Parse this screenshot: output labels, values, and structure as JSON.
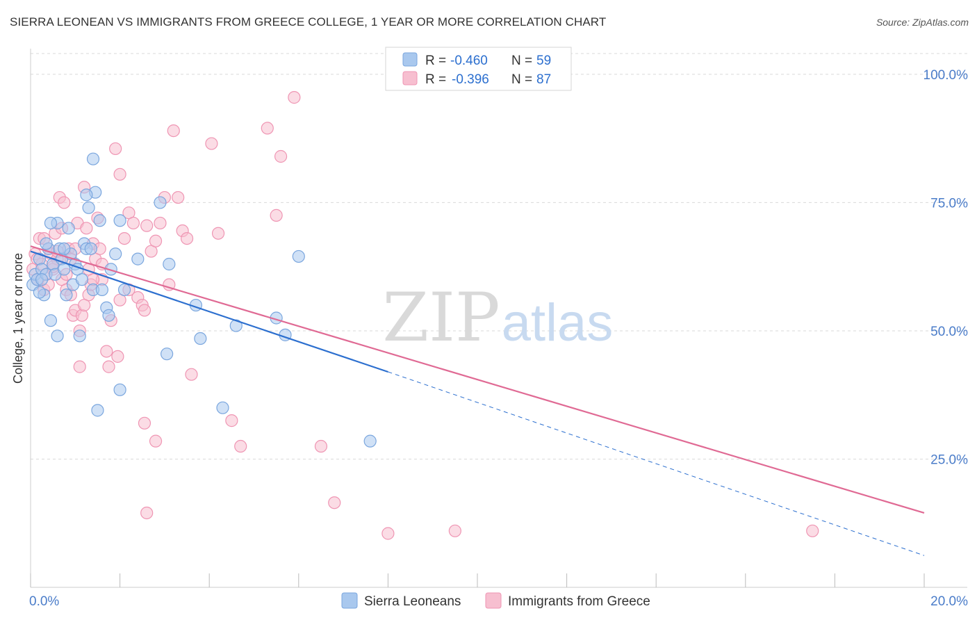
{
  "header": {
    "title": "SIERRA LEONEAN VS IMMIGRANTS FROM GREECE COLLEGE, 1 YEAR OR MORE CORRELATION CHART",
    "source": "Source: ZipAtlas.com"
  },
  "watermark": {
    "zip": "ZIP",
    "atlas": "atlas"
  },
  "colors": {
    "blue_fill": "#a9c8ee",
    "blue_stroke": "#7aa6de",
    "blue_line": "#2c6fcf",
    "pink_fill": "#f7bfd0",
    "pink_stroke": "#ef95b3",
    "pink_line": "#e06a94",
    "tick_label": "#4a7cc9",
    "grid": "#d9d9d9"
  },
  "chart_data": {
    "type": "scatter",
    "title": "SIERRA LEONEAN VS IMMIGRANTS FROM GREECE COLLEGE, 1 YEAR OR MORE CORRELATION CHART",
    "xlabel": "",
    "ylabel": "College, 1 year or more",
    "xlim": [
      0,
      20
    ],
    "ylim": [
      0,
      105
    ],
    "x_ticks": [
      0,
      2,
      4,
      6,
      8,
      10,
      12,
      14,
      16,
      18,
      20
    ],
    "x_tick_labels": [
      {
        "value": 0,
        "label": "0.0%"
      },
      {
        "value": 20,
        "label": "20.0%"
      }
    ],
    "y_tick_labels": [
      {
        "value": 25,
        "label": "25.0%"
      },
      {
        "value": 50,
        "label": "50.0%"
      },
      {
        "value": 75,
        "label": "75.0%"
      },
      {
        "value": 100,
        "label": "100.0%"
      }
    ],
    "grid": true,
    "legend_position": "top-center",
    "stats": [
      {
        "r_label": "R =",
        "r_value": "-0.460",
        "n_label": "N =",
        "n_value": "59"
      },
      {
        "r_label": "R =",
        "r_value": "-0.396",
        "n_label": "N =",
        "n_value": "87"
      }
    ],
    "series": [
      {
        "name": "Sierra Leoneans",
        "color": "#a9c8ee",
        "trend": {
          "x0": 0,
          "y0": 65.5,
          "x1": 8.0,
          "y1": 42.0,
          "dash_to_x": 20,
          "dash_to_y": 6.2
        },
        "points": [
          [
            0.05,
            59
          ],
          [
            0.1,
            61
          ],
          [
            0.15,
            60
          ],
          [
            0.2,
            64
          ],
          [
            0.25,
            62
          ],
          [
            0.3,
            57
          ],
          [
            0.35,
            61
          ],
          [
            0.4,
            66
          ],
          [
            0.45,
            52
          ],
          [
            0.5,
            63
          ],
          [
            0.55,
            61
          ],
          [
            0.6,
            71
          ],
          [
            0.65,
            66
          ],
          [
            0.7,
            64
          ],
          [
            0.75,
            62
          ],
          [
            0.8,
            57
          ],
          [
            0.85,
            70
          ],
          [
            0.9,
            65
          ],
          [
            0.95,
            59
          ],
          [
            1.0,
            63
          ],
          [
            1.05,
            62
          ],
          [
            1.1,
            49
          ],
          [
            1.15,
            60
          ],
          [
            1.2,
            67
          ],
          [
            1.25,
            66
          ],
          [
            1.3,
            74
          ],
          [
            1.35,
            66
          ],
          [
            1.4,
            58
          ],
          [
            1.45,
            77
          ],
          [
            1.5,
            34.5
          ],
          [
            1.55,
            71.5
          ],
          [
            1.6,
            58
          ],
          [
            1.7,
            54.5
          ],
          [
            1.75,
            53
          ],
          [
            1.8,
            62
          ],
          [
            1.9,
            65
          ],
          [
            2.0,
            71.5
          ],
          [
            2.1,
            58
          ],
          [
            2.4,
            64
          ],
          [
            2.9,
            75
          ],
          [
            3.05,
            45.5
          ],
          [
            3.1,
            63
          ],
          [
            3.7,
            55
          ],
          [
            3.8,
            48.5
          ],
          [
            4.3,
            35
          ],
          [
            4.6,
            51
          ],
          [
            5.5,
            52.5
          ],
          [
            5.7,
            49.2
          ],
          [
            6.0,
            64.5
          ],
          [
            7.6,
            28.5
          ],
          [
            1.4,
            83.5
          ],
          [
            1.25,
            76.5
          ],
          [
            0.45,
            71
          ],
          [
            0.75,
            66
          ],
          [
            0.25,
            60
          ],
          [
            0.35,
            67
          ],
          [
            0.6,
            49
          ],
          [
            2.0,
            38.5
          ],
          [
            0.2,
            57.5
          ]
        ]
      },
      {
        "name": "Immigrants from Greece",
        "color": "#f7bfd0",
        "trend": {
          "x0": 0,
          "y0": 66.5,
          "x1": 20,
          "y1": 14.5
        },
        "points": [
          [
            0.05,
            62
          ],
          [
            0.1,
            65
          ],
          [
            0.15,
            60
          ],
          [
            0.2,
            68
          ],
          [
            0.25,
            63
          ],
          [
            0.3,
            58
          ],
          [
            0.35,
            61
          ],
          [
            0.4,
            66
          ],
          [
            0.45,
            65
          ],
          [
            0.5,
            62
          ],
          [
            0.55,
            69
          ],
          [
            0.6,
            64
          ],
          [
            0.65,
            76
          ],
          [
            0.7,
            60
          ],
          [
            0.75,
            75
          ],
          [
            0.8,
            58
          ],
          [
            0.85,
            66
          ],
          [
            0.9,
            64
          ],
          [
            0.95,
            53
          ],
          [
            1.0,
            54
          ],
          [
            1.05,
            71
          ],
          [
            1.1,
            43
          ],
          [
            1.15,
            53
          ],
          [
            1.2,
            78
          ],
          [
            1.25,
            70
          ],
          [
            1.3,
            57
          ],
          [
            1.35,
            59
          ],
          [
            1.4,
            67
          ],
          [
            1.45,
            64
          ],
          [
            1.5,
            72
          ],
          [
            1.55,
            66
          ],
          [
            1.6,
            60
          ],
          [
            1.7,
            46
          ],
          [
            1.75,
            43
          ],
          [
            1.8,
            52
          ],
          [
            1.9,
            85.5
          ],
          [
            1.95,
            45
          ],
          [
            2.0,
            80.5
          ],
          [
            2.1,
            68
          ],
          [
            2.2,
            73
          ],
          [
            2.3,
            71
          ],
          [
            2.4,
            56.5
          ],
          [
            2.5,
            55
          ],
          [
            2.55,
            54
          ],
          [
            2.6,
            70.5
          ],
          [
            2.7,
            65.5
          ],
          [
            2.8,
            67.5
          ],
          [
            2.9,
            71
          ],
          [
            3.0,
            76
          ],
          [
            3.1,
            59
          ],
          [
            3.2,
            89
          ],
          [
            3.3,
            76
          ],
          [
            3.4,
            69.5
          ],
          [
            3.5,
            68
          ],
          [
            3.6,
            41.5
          ],
          [
            4.05,
            86.5
          ],
          [
            4.2,
            69
          ],
          [
            4.5,
            32.5
          ],
          [
            4.7,
            27.5
          ],
          [
            5.3,
            89.5
          ],
          [
            5.5,
            72.5
          ],
          [
            5.6,
            84
          ],
          [
            5.9,
            95.5
          ],
          [
            6.5,
            27.5
          ],
          [
            6.8,
            16.5
          ],
          [
            8.0,
            10.5
          ],
          [
            9.5,
            11
          ],
          [
            17.5,
            11
          ],
          [
            2.55,
            32
          ],
          [
            2.6,
            14.5
          ],
          [
            2.8,
            28.5
          ],
          [
            0.3,
            68
          ],
          [
            0.5,
            62.5
          ],
          [
            0.7,
            70
          ],
          [
            0.9,
            57
          ],
          [
            1.2,
            55
          ],
          [
            1.4,
            60
          ],
          [
            1.6,
            63
          ],
          [
            2.0,
            56
          ],
          [
            0.15,
            64
          ],
          [
            0.4,
            59
          ],
          [
            0.6,
            65.5
          ],
          [
            0.8,
            61
          ],
          [
            1.0,
            66
          ],
          [
            1.3,
            62
          ],
          [
            1.1,
            50
          ],
          [
            2.2,
            58
          ]
        ]
      }
    ]
  },
  "legend": {
    "items": [
      {
        "label": "Sierra Leoneans"
      },
      {
        "label": "Immigrants from Greece"
      }
    ]
  }
}
